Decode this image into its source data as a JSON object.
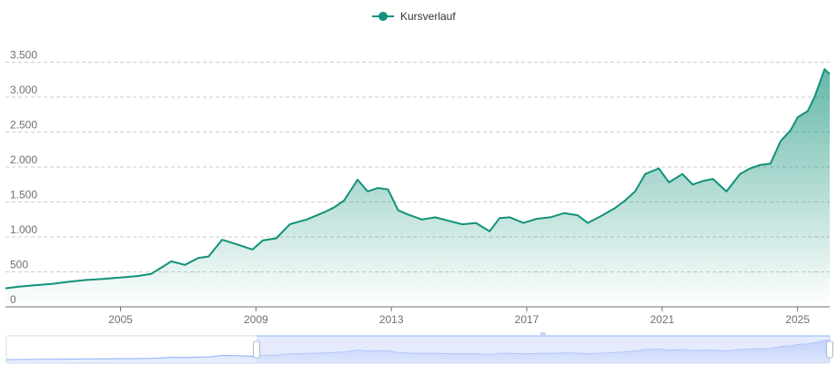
{
  "chart_data": {
    "type": "area",
    "legend": {
      "label": "Kursverlauf",
      "position": "top-center"
    },
    "colors": {
      "line": "#12927a",
      "area_top": "#12927a",
      "grid": "#cccccc",
      "axis_text": "#6e7079",
      "zoom_window": "#d0dafc",
      "zoom_border": "#8fb0f7"
    },
    "ylim": [
      0,
      3500
    ],
    "y_ticks": [
      0,
      500,
      1000,
      1500,
      2000,
      2500,
      3000,
      3500
    ],
    "y_tick_labels": [
      "0",
      "500",
      "1.000",
      "1.500",
      "2.000",
      "2.500",
      "3.000",
      "3.500"
    ],
    "xlim": [
      2001.6,
      2025.95
    ],
    "x_ticks": [
      2005,
      2009,
      2013,
      2017,
      2021,
      2025
    ],
    "x_tick_labels": [
      "2005",
      "2009",
      "2013",
      "2017",
      "2021",
      "2025"
    ],
    "grid": "horizontal-dashed",
    "series": [
      {
        "name": "Kursverlauf",
        "x": [
          2001.6,
          2002.0,
          2002.5,
          2003.0,
          2003.5,
          2004.0,
          2004.5,
          2005.0,
          2005.5,
          2005.9,
          2006.2,
          2006.5,
          2006.9,
          2007.3,
          2007.6,
          2008.0,
          2008.4,
          2008.9,
          2009.2,
          2009.6,
          2010.0,
          2010.5,
          2011.0,
          2011.3,
          2011.6,
          2011.9,
          2012.0,
          2012.3,
          2012.6,
          2012.9,
          2013.2,
          2013.5,
          2013.9,
          2014.3,
          2014.7,
          2015.1,
          2015.5,
          2015.9,
          2016.2,
          2016.5,
          2016.9,
          2017.3,
          2017.7,
          2018.1,
          2018.5,
          2018.8,
          2019.2,
          2019.6,
          2019.9,
          2020.2,
          2020.5,
          2020.9,
          2021.2,
          2021.6,
          2021.9,
          2022.2,
          2022.5,
          2022.9,
          2023.3,
          2023.6,
          2023.9,
          2024.2,
          2024.5,
          2024.8,
          2025.0,
          2025.3,
          2025.5,
          2025.8,
          2025.95
        ],
        "values": [
          265,
          290,
          310,
          330,
          360,
          385,
          400,
          420,
          440,
          470,
          560,
          650,
          600,
          700,
          720,
          960,
          900,
          820,
          950,
          980,
          1180,
          1250,
          1350,
          1420,
          1520,
          1740,
          1820,
          1650,
          1700,
          1680,
          1380,
          1320,
          1250,
          1280,
          1230,
          1180,
          1200,
          1080,
          1270,
          1280,
          1200,
          1260,
          1280,
          1340,
          1310,
          1200,
          1300,
          1410,
          1520,
          1650,
          1900,
          1980,
          1780,
          1900,
          1750,
          1800,
          1830,
          1650,
          1900,
          1980,
          2030,
          2050,
          2370,
          2530,
          2710,
          2800,
          3000,
          3400,
          3330
        ]
      }
    ],
    "zoom_slider": {
      "range_start": 2009.0,
      "range_end": 2025.95
    }
  }
}
